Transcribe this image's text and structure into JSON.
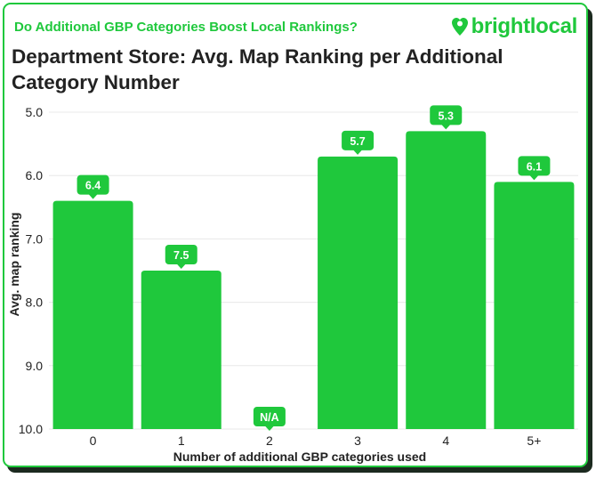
{
  "header": {
    "subtitle": "Do Additional GBP Categories Boost Local Rankings?",
    "brand": "brightlocal",
    "brand_icon": "heart-pin-icon",
    "title_line1": "Department Store: Avg. Map Ranking per Additional",
    "title_line2": "Category Number"
  },
  "colors": {
    "bar": "#1fc83c",
    "text": "#222222",
    "grid": "#e8e8e8"
  },
  "chart_data": {
    "type": "bar",
    "title": "Department Store: Avg. Map Ranking per Additional Category Number",
    "xlabel": "Number of additional GBP categories used",
    "ylabel": "Avg. map ranking",
    "categories": [
      "0",
      "1",
      "2",
      "3",
      "4",
      "5+"
    ],
    "values": [
      6.4,
      7.5,
      null,
      5.7,
      5.3,
      6.1
    ],
    "value_labels": [
      "6.4",
      "7.5",
      "N/A",
      "5.7",
      "5.3",
      "6.1"
    ],
    "ylim": [
      5.0,
      10.0
    ],
    "y_inverted": true,
    "yticks": [
      "5.0",
      "6.0",
      "7.0",
      "8.0",
      "9.0",
      "10.0"
    ],
    "grid": true
  }
}
